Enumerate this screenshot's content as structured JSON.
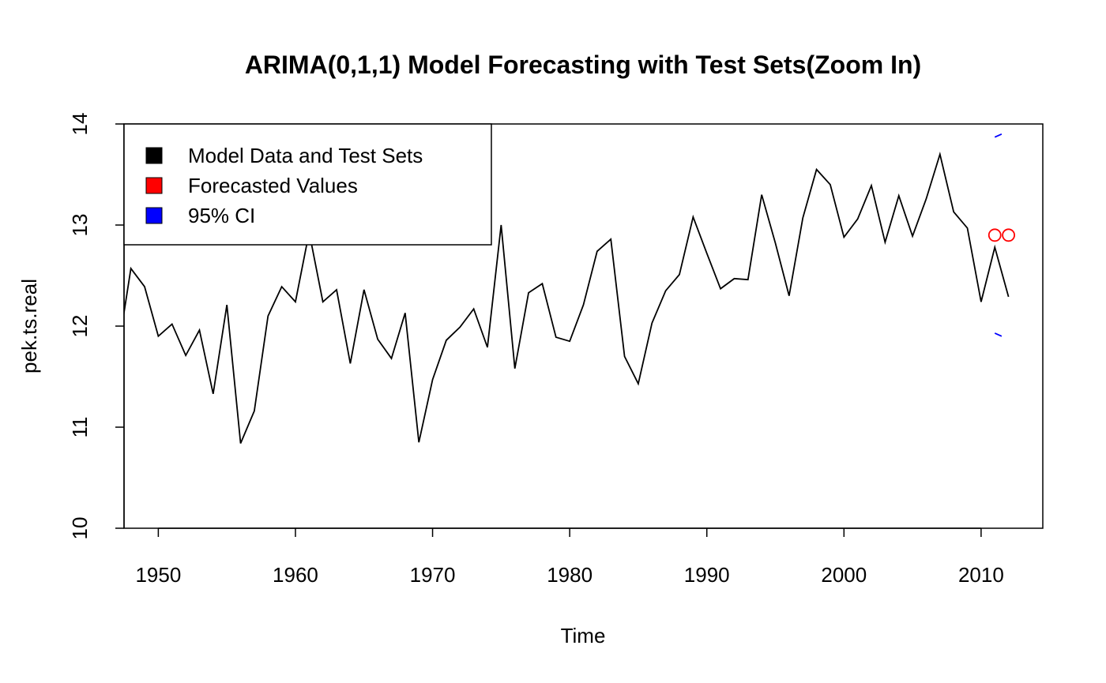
{
  "chart_data": {
    "type": "line",
    "title": "ARIMA(0,1,1) Model Forecasting with Test Sets(Zoom In)",
    "xlabel": "Time",
    "ylabel": "pek.ts.real",
    "xlim": [
      1947.5,
      2014.5
    ],
    "ylim": [
      10,
      14
    ],
    "x_ticks": [
      "1950",
      "1960",
      "1970",
      "1980",
      "1990",
      "2000",
      "2010"
    ],
    "y_ticks": [
      "10",
      "11",
      "12",
      "13",
      "14"
    ],
    "grid": false,
    "legend_position": "top-left",
    "legend": [
      {
        "label": "Model Data and Test Sets",
        "color": "#000000"
      },
      {
        "label": "Forecasted Values",
        "color": "#ff0000"
      },
      {
        "label": "95% CI",
        "color": "#0000ff"
      }
    ],
    "series": [
      {
        "color": "#000000",
        "x": [
          1947,
          1948,
          1949,
          1950,
          1951,
          1952,
          1953,
          1954,
          1955,
          1956,
          1957,
          1958,
          1959,
          1960,
          1961,
          1962,
          1963,
          1964,
          1965,
          1966,
          1967,
          1968,
          1969,
          1970,
          1971,
          1972,
          1973,
          1974,
          1975,
          1976,
          1977,
          1978,
          1979,
          1980,
          1981,
          1982,
          1983,
          1984,
          1985,
          1986,
          1987,
          1988,
          1989,
          1990,
          1991,
          1992,
          1993,
          1994,
          1995,
          1996,
          1997,
          1998,
          1999,
          2000,
          2001,
          2002,
          2003,
          2004,
          2005,
          2006,
          2007,
          2008,
          2009,
          2010,
          2011,
          2012
        ],
        "values": [
          11.7,
          12.57,
          12.39,
          11.9,
          12.02,
          11.71,
          11.96,
          11.33,
          12.21,
          10.84,
          11.16,
          12.1,
          12.39,
          12.24,
          12.93,
          12.24,
          12.36,
          11.63,
          12.36,
          11.87,
          11.68,
          12.13,
          10.85,
          11.47,
          11.86,
          11.99,
          12.17,
          11.79,
          13.0,
          11.58,
          12.33,
          12.42,
          11.89,
          11.85,
          12.21,
          12.74,
          12.86,
          11.7,
          11.43,
          12.03,
          12.35,
          12.51,
          13.08,
          12.72,
          12.37,
          12.47,
          12.46,
          13.3,
          12.82,
          12.3,
          13.07,
          13.55,
          13.4,
          12.88,
          13.06,
          13.39,
          12.83,
          13.29,
          12.89,
          13.26,
          13.7,
          13.13,
          12.97,
          12.24,
          12.78,
          12.29
        ]
      }
    ],
    "forecast_points": {
      "color": "#ff0000",
      "x": [
        2011,
        2012
      ],
      "values": [
        12.9,
        12.9
      ]
    },
    "ci_segments": {
      "color": "#0000ff",
      "upper": {
        "x": [
          2011,
          2011.5
        ],
        "values": [
          13.87,
          13.9
        ]
      },
      "lower": {
        "x": [
          2011,
          2011.5
        ],
        "values": [
          11.93,
          11.9
        ]
      }
    }
  }
}
